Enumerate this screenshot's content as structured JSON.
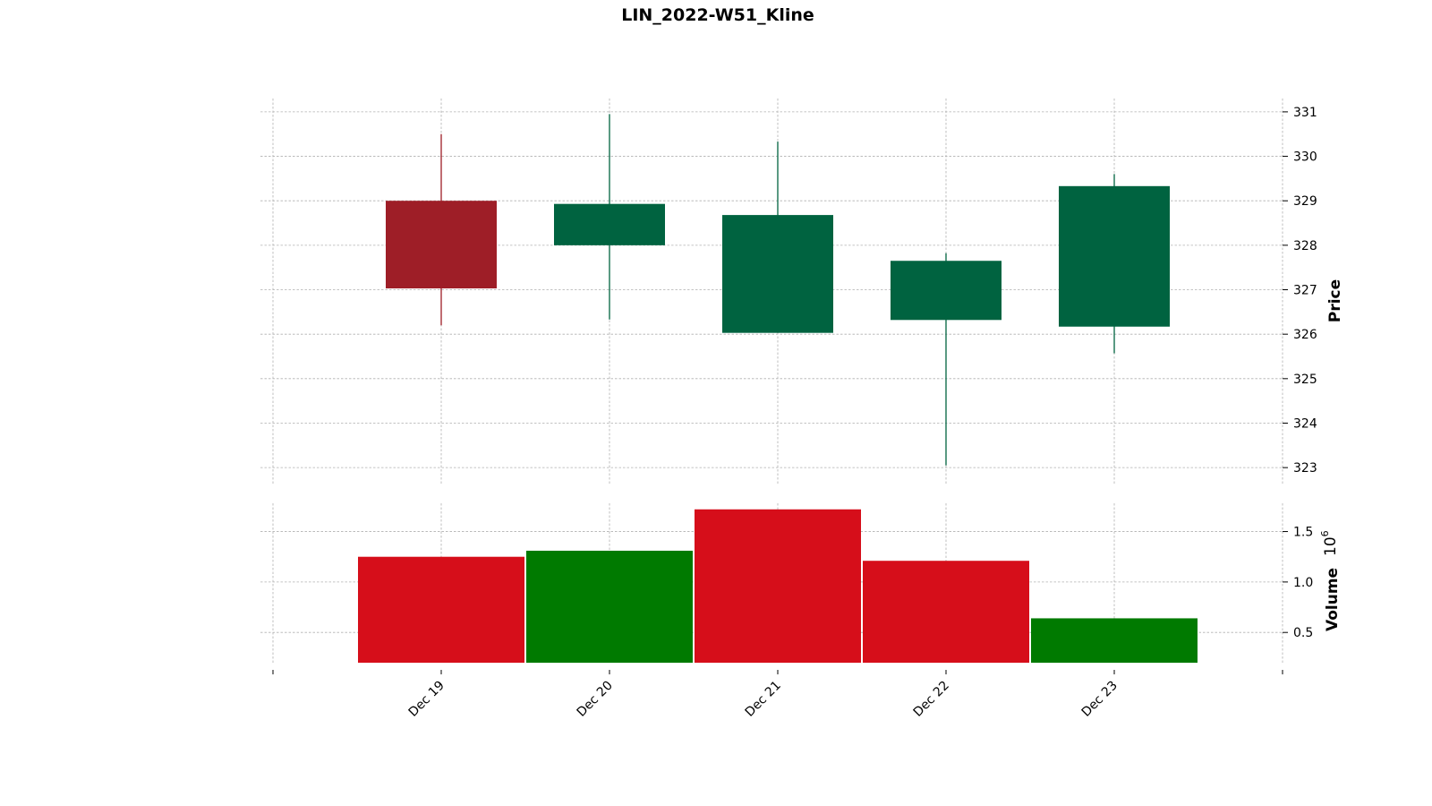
{
  "chart_data": {
    "type": "candlestick",
    "title": "LIN_2022-W51_Kline",
    "categories": [
      "Dec 19",
      "Dec 20",
      "Dec 21",
      "Dec 22",
      "Dec 23"
    ],
    "price": {
      "ylabel": "Price",
      "ylim": [
        322.6,
        331.3
      ],
      "ticks": [
        323,
        324,
        325,
        326,
        327,
        328,
        329,
        330,
        331
      ],
      "candles": [
        {
          "date": "Dec 19",
          "open": 329.0,
          "high": 330.5,
          "low": 326.2,
          "close": 327.03,
          "direction": "down"
        },
        {
          "date": "Dec 20",
          "open": 328.0,
          "high": 330.95,
          "low": 326.33,
          "close": 328.93,
          "direction": "up"
        },
        {
          "date": "Dec 21",
          "open": 326.03,
          "high": 330.33,
          "low": 326.03,
          "close": 328.68,
          "direction": "up"
        },
        {
          "date": "Dec 22",
          "open": 326.32,
          "high": 327.82,
          "low": 323.05,
          "close": 327.65,
          "direction": "up"
        },
        {
          "date": "Dec 23",
          "open": 326.17,
          "high": 329.6,
          "low": 325.57,
          "close": 329.33,
          "direction": "up"
        }
      ]
    },
    "volume": {
      "ylabel": "Volume",
      "multiplier": "10",
      "exponent": "6",
      "ylim": [
        0.2,
        1.78
      ],
      "ticks": [
        "0.5",
        "1.0",
        "1.5"
      ],
      "values": [
        1.25,
        1.31,
        1.72,
        1.21,
        0.64
      ],
      "bar_colors": [
        "#d60e1a",
        "#007a00",
        "#d60e1a",
        "#d60e1a",
        "#007a00"
      ]
    },
    "colors": {
      "up": "#006340",
      "down": "#9e1e27"
    },
    "grid": true
  }
}
